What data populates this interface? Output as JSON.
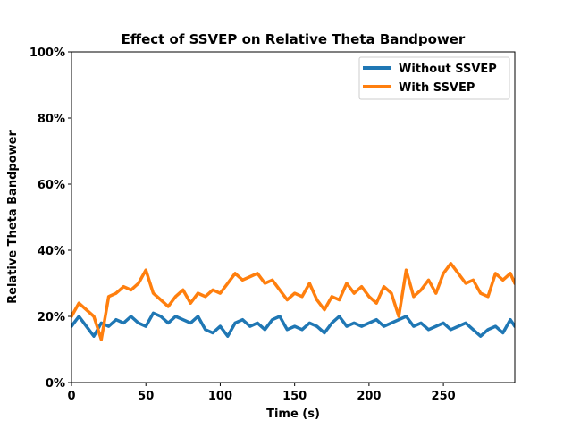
{
  "chart_data": {
    "type": "line",
    "title": "Effect of SSVEP on Relative Theta Bandpower",
    "xlabel": "Time (s)",
    "ylabel": "Relative Theta Bandpower",
    "xlim": [
      0,
      298
    ],
    "ylim": [
      0,
      1
    ],
    "x_ticks": [
      0,
      50,
      100,
      150,
      200,
      250
    ],
    "y_ticks": [
      0,
      0.2,
      0.4,
      0.6,
      0.8,
      1.0
    ],
    "y_tick_labels": [
      "0%",
      "20%",
      "40%",
      "60%",
      "80%",
      "100%"
    ],
    "grid": false,
    "legend_position": "top-right",
    "x": [
      0,
      5,
      10,
      15,
      20,
      25,
      30,
      35,
      40,
      45,
      50,
      55,
      60,
      65,
      70,
      75,
      80,
      85,
      90,
      95,
      100,
      105,
      110,
      115,
      120,
      125,
      130,
      135,
      140,
      145,
      150,
      155,
      160,
      165,
      170,
      175,
      180,
      185,
      190,
      195,
      200,
      205,
      210,
      215,
      220,
      225,
      230,
      235,
      240,
      245,
      250,
      255,
      260,
      265,
      270,
      275,
      280,
      285,
      290,
      295,
      298
    ],
    "series": [
      {
        "name": "Without SSVEP",
        "color": "#1f77b4",
        "values": [
          0.17,
          0.2,
          0.17,
          0.14,
          0.18,
          0.17,
          0.19,
          0.18,
          0.2,
          0.18,
          0.17,
          0.21,
          0.2,
          0.18,
          0.2,
          0.19,
          0.18,
          0.2,
          0.16,
          0.15,
          0.17,
          0.14,
          0.18,
          0.19,
          0.17,
          0.18,
          0.16,
          0.19,
          0.2,
          0.16,
          0.17,
          0.16,
          0.18,
          0.17,
          0.15,
          0.18,
          0.2,
          0.17,
          0.18,
          0.17,
          0.18,
          0.19,
          0.17,
          0.18,
          0.19,
          0.2,
          0.17,
          0.18,
          0.16,
          0.17,
          0.18,
          0.16,
          0.17,
          0.18,
          0.16,
          0.14,
          0.16,
          0.17,
          0.15,
          0.19,
          0.17
        ]
      },
      {
        "name": "With SSVEP",
        "color": "#ff7f0e",
        "values": [
          0.2,
          0.24,
          0.22,
          0.2,
          0.13,
          0.26,
          0.27,
          0.29,
          0.28,
          0.3,
          0.34,
          0.27,
          0.25,
          0.23,
          0.26,
          0.28,
          0.24,
          0.27,
          0.26,
          0.28,
          0.27,
          0.3,
          0.33,
          0.31,
          0.32,
          0.33,
          0.3,
          0.31,
          0.28,
          0.25,
          0.27,
          0.26,
          0.3,
          0.25,
          0.22,
          0.26,
          0.25,
          0.3,
          0.27,
          0.29,
          0.26,
          0.24,
          0.29,
          0.27,
          0.2,
          0.34,
          0.26,
          0.28,
          0.31,
          0.27,
          0.33,
          0.36,
          0.33,
          0.3,
          0.31,
          0.27,
          0.26,
          0.33,
          0.31,
          0.33,
          0.3
        ]
      }
    ]
  }
}
